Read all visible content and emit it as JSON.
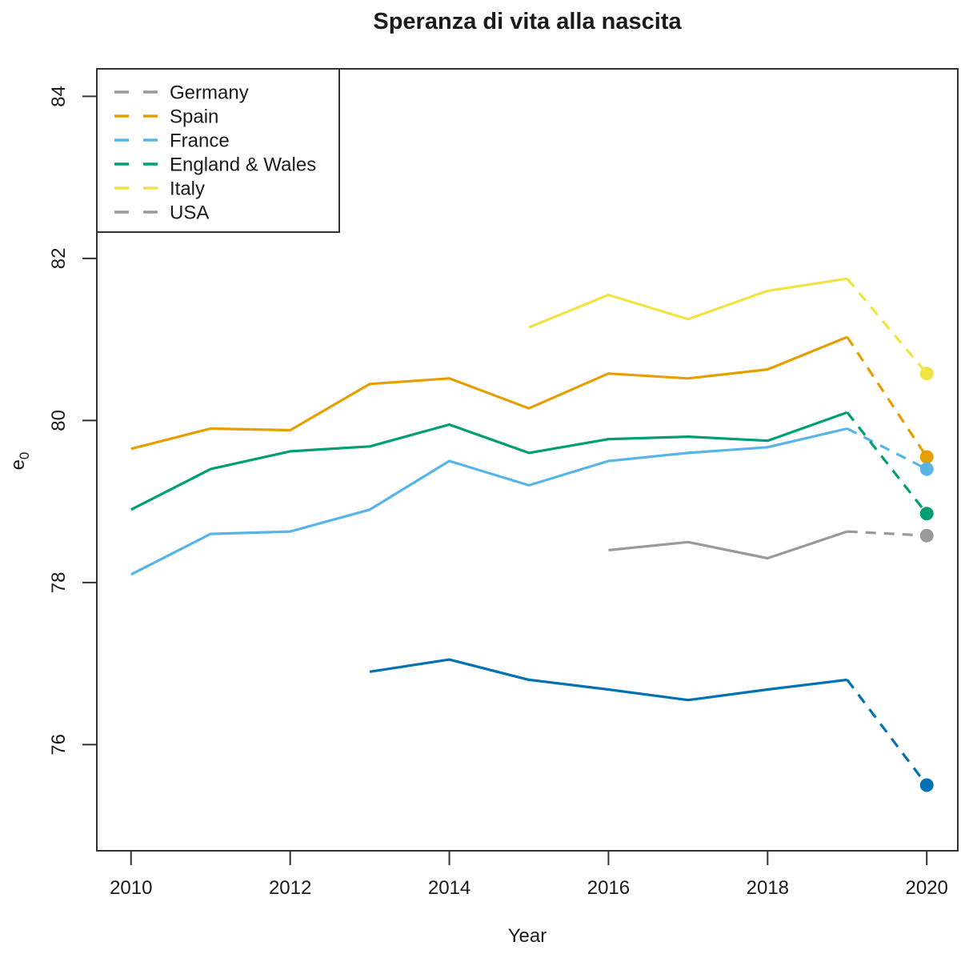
{
  "page": {
    "background": "#ffffff"
  },
  "chart_data": {
    "type": "line",
    "title": "Speranza di vita alla nascita",
    "xlabel": "Year",
    "ylabel": "e0",
    "ylabel_base": "e",
    "ylabel_subscript": "0",
    "x_ticks": [
      2010,
      2012,
      2014,
      2016,
      2018,
      2020
    ],
    "y_ticks": [
      76,
      78,
      80,
      82,
      84
    ],
    "xlim": [
      2009.57,
      2020.39
    ],
    "ylim": [
      74.69,
      84.34
    ],
    "grid": false,
    "legend_position": "top-left",
    "frame_color": "#333333",
    "text_color": "#1a1a1a",
    "dashed_segment_note": "last segment (2019 to 2020) drawn dashed with a filled round marker at 2020",
    "series": [
      {
        "name": "Germany",
        "slug": "germany",
        "color": "#999999",
        "legend_color": "#999999",
        "x": [
          2016,
          2017,
          2018,
          2019,
          2020
        ],
        "values": [
          78.4,
          78.5,
          78.3,
          78.63,
          78.58
        ]
      },
      {
        "name": "Spain",
        "slug": "spain",
        "color": "#E69F00",
        "legend_color": "#E69F00",
        "x": [
          2010,
          2011,
          2012,
          2013,
          2014,
          2015,
          2016,
          2017,
          2018,
          2019,
          2020
        ],
        "values": [
          79.65,
          79.9,
          79.88,
          80.45,
          80.52,
          80.15,
          80.58,
          80.52,
          80.63,
          81.03,
          79.55
        ]
      },
      {
        "name": "France",
        "slug": "france",
        "color": "#56B4E9",
        "legend_color": "#56B4E9",
        "x": [
          2010,
          2011,
          2012,
          2013,
          2014,
          2015,
          2016,
          2017,
          2018,
          2019,
          2020
        ],
        "values": [
          78.1,
          78.6,
          78.63,
          78.9,
          79.5,
          79.2,
          79.5,
          79.6,
          79.67,
          79.9,
          79.4
        ]
      },
      {
        "name": "England & Wales",
        "slug": "england-wales",
        "color": "#009E73",
        "legend_color": "#009E73",
        "x": [
          2010,
          2011,
          2012,
          2013,
          2014,
          2015,
          2016,
          2017,
          2018,
          2019,
          2020
        ],
        "values": [
          78.9,
          79.4,
          79.62,
          79.68,
          79.95,
          79.6,
          79.77,
          79.8,
          79.75,
          80.1,
          78.85
        ]
      },
      {
        "name": "Italy",
        "slug": "italy",
        "color": "#F0E442",
        "legend_color": "#F0E442",
        "x": [
          2015,
          2016,
          2017,
          2018,
          2019,
          2020
        ],
        "values": [
          81.15,
          81.55,
          81.25,
          81.6,
          81.75,
          80.58
        ]
      },
      {
        "name": "USA",
        "slug": "usa",
        "color": "#0072B2",
        "legend_color": "#999999",
        "x": [
          2013,
          2014,
          2015,
          2016,
          2017,
          2018,
          2019,
          2020
        ],
        "values": [
          76.9,
          77.05,
          76.8,
          76.68,
          76.55,
          76.68,
          76.8,
          75.5
        ]
      }
    ]
  }
}
